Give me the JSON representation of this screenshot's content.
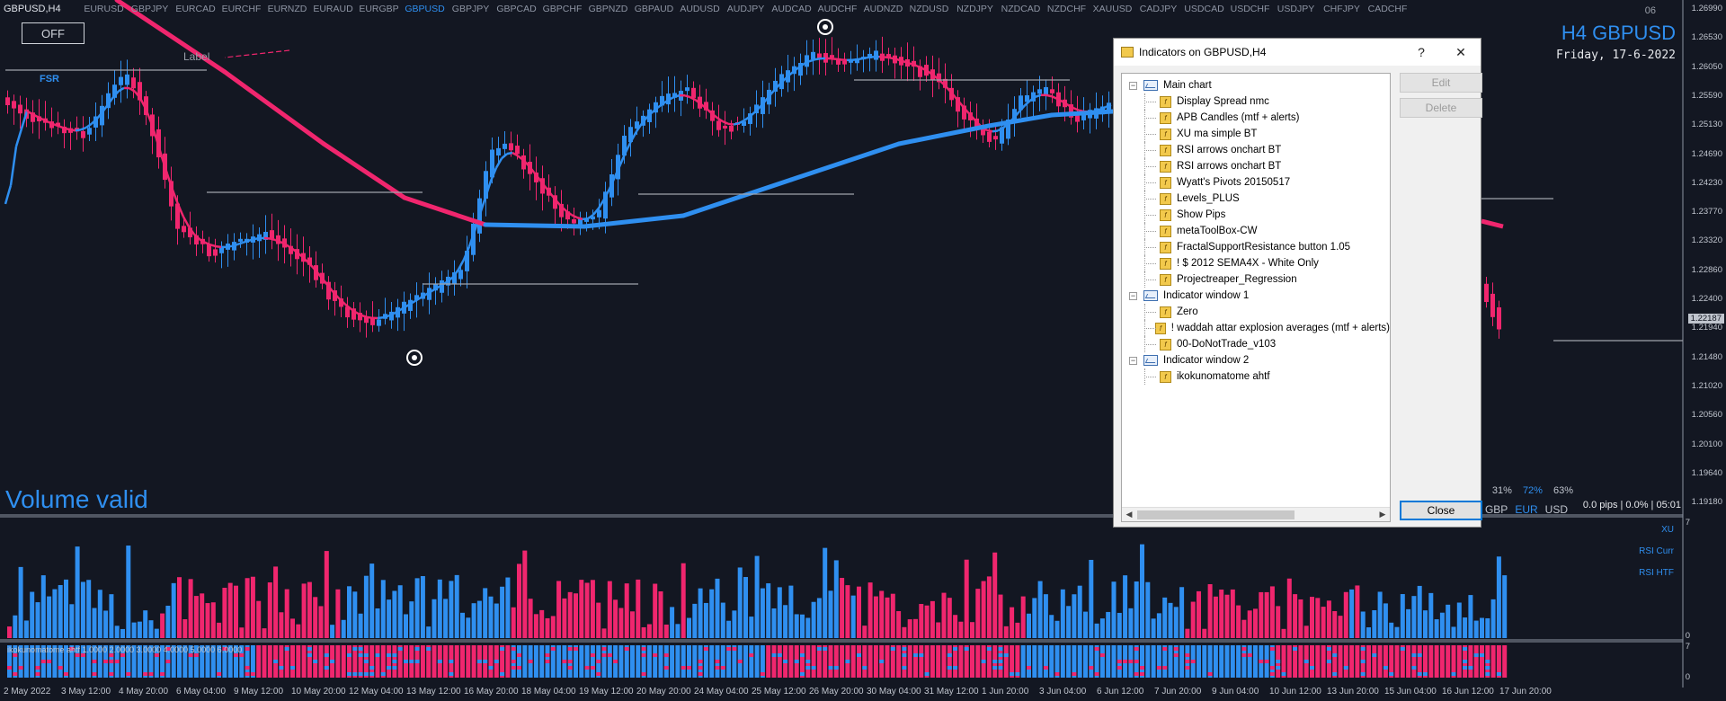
{
  "toolbar": {
    "title": "GBPUSD,H4",
    "symbols": [
      "EURUSD",
      "GBPJPY",
      "EURCAD",
      "EURCHF",
      "EURNZD",
      "EURAUD",
      "EURGBP",
      "GBPUSD",
      "GBPJPY",
      "GBPCAD",
      "GBPCHF",
      "GBPNZD",
      "GBPAUD",
      "AUDUSD",
      "AUDJPY",
      "AUDCAD",
      "AUDCHF",
      "AUDNZD",
      "NZDUSD",
      "NZDJPY",
      "NZDCAD",
      "NZDCHF",
      "XAUUSD",
      "CADJPY",
      "USDCAD",
      "USDCHF",
      "USDJPY",
      "CHFJPY",
      "CADCHF"
    ],
    "active_symbol": "GBPUSD"
  },
  "chart": {
    "off_button": "OFF",
    "header_title": "H4 GBPUSD",
    "header_date": "Friday, 17-6-2022",
    "header_small": "06",
    "volume_valid": "Volume valid",
    "label_text": "Label",
    "fsr_text": "FSR",
    "current_price": "1.22187",
    "price_ticks": [
      "1.26990",
      "1.26530",
      "1.26050",
      "1.25590",
      "1.25130",
      "1.24690",
      "1.24230",
      "1.23770",
      "1.23320",
      "1.22860",
      "1.22400",
      "1.21940",
      "1.21480",
      "1.21020",
      "1.20560",
      "1.20100",
      "1.19640",
      "1.19180"
    ],
    "time_ticks": [
      "2 May 2022",
      "3 May 12:00",
      "4 May 20:00",
      "6 May 04:00",
      "9 May 12:00",
      "10 May 20:00",
      "12 May 04:00",
      "13 May 12:00",
      "16 May 20:00",
      "18 May 04:00",
      "19 May 12:00",
      "20 May 20:00",
      "24 May 04:00",
      "25 May 12:00",
      "26 May 20:00",
      "30 May 04:00",
      "31 May 12:00",
      "1 Jun 20:00",
      "3 Jun 04:00",
      "6 Jun 12:00",
      "7 Jun 20:00",
      "9 Jun 04:00",
      "10 Jun 12:00",
      "13 Jun 20:00",
      "15 Jun 04:00",
      "16 Jun 12:00",
      "17 Jun 20:00"
    ],
    "pct_values": [
      "31%",
      "72%",
      "63%"
    ],
    "pips_info": "0.0 pips | 0.0% | 05:01",
    "currencies": [
      "GBP",
      "EUR",
      "USD"
    ],
    "sub_labels": [
      "XU",
      "RSI Curr",
      "RSI HTF"
    ],
    "sub1_axis": [
      "7",
      "0"
    ],
    "sub2_axis": [
      "7",
      "0"
    ],
    "indicator_label": "ikokunomatome ahtf 1.0000 2.0000 3.0000 4.0000 5.0000 6.0000",
    "colors": {
      "bull": "#2f8ff0",
      "bear": "#f0266e",
      "bg": "#131722"
    }
  },
  "dialog": {
    "title": "Indicators on GBPUSD,H4",
    "help": "?",
    "close_x": "✕",
    "edit": "Edit",
    "delete": "Delete",
    "close": "Close",
    "groups": [
      {
        "name": "Main chart",
        "items": [
          "Display Spread nmc",
          "APB Candles (mtf + alerts)",
          "XU ma simple BT",
          "RSI arrows onchart BT",
          "RSI arrows onchart BT",
          "Wyatt's Pivots 20150517",
          "Levels_PLUS",
          "Show Pips",
          "metaToolBox-CW",
          "FractalSupportResistance button 1.05",
          "! $ 2012 SEMA4X - White Only",
          "Projectreaper_Regression"
        ]
      },
      {
        "name": "Indicator window 1",
        "items": [
          "Zero",
          "! waddah attar explosion averages (mtf + alerts)",
          "00-DoNotTrade_v103"
        ]
      },
      {
        "name": "Indicator window 2",
        "items": [
          "ikokunomatome ahtf"
        ]
      }
    ]
  }
}
